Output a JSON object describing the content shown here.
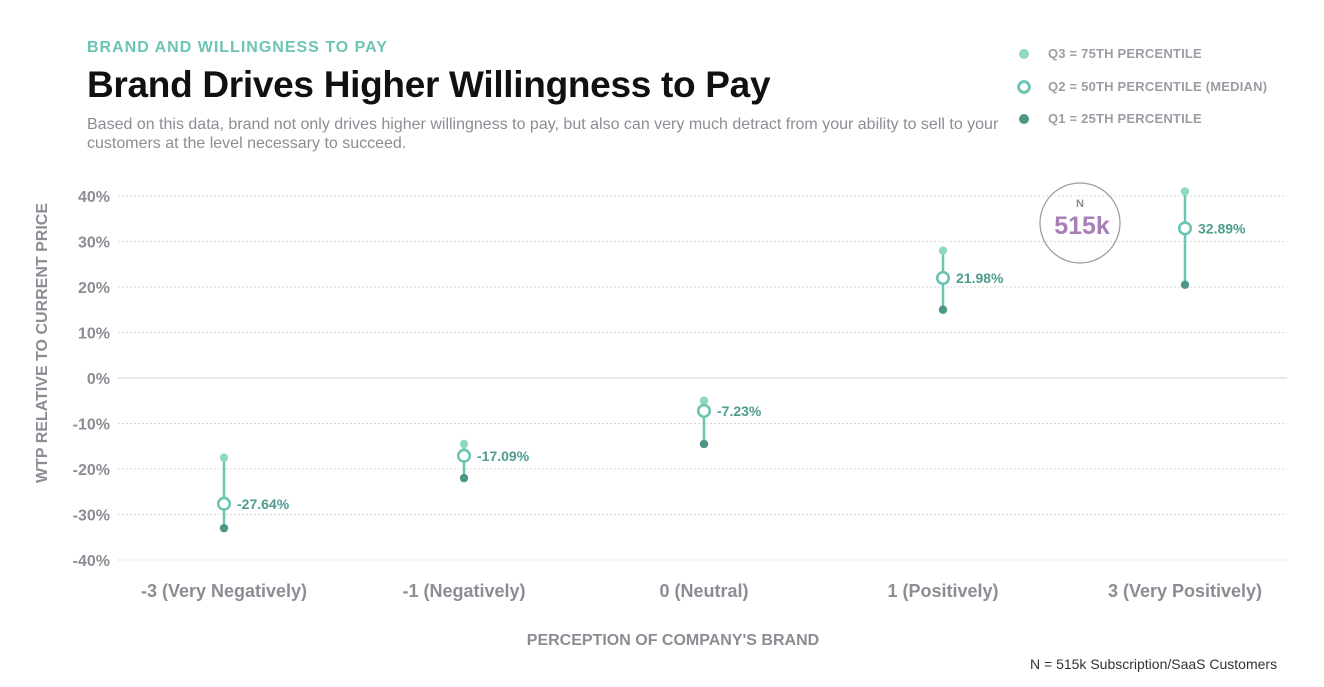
{
  "header": {
    "eyebrow": "BRAND AND WILLINGNESS TO PAY",
    "title": "Brand Drives Higher Willingness to Pay",
    "subtitle": "Based on this data, brand not only drives higher willingness to pay, but also can very much detract from your ability to sell to your customers at the level necessary to succeed."
  },
  "legend": {
    "items": [
      {
        "label": "Q3 = 75TH PERCENTILE",
        "marker": "filled-light"
      },
      {
        "label": "Q2 = 50TH PERCENTILE (MEDIAN)",
        "marker": "ring"
      },
      {
        "label": "Q1 = 25TH PERCENTILE",
        "marker": "filled-dark"
      }
    ]
  },
  "badge": {
    "label": "N",
    "value": "515k"
  },
  "footnote": "N = 515k Subscription/SaaS Customers",
  "colors": {
    "q3": "#8fd8c4",
    "q2": "#6cc4b2",
    "q1": "#4e9688",
    "stem": "#6cc4b2",
    "label": "#4e9c8e",
    "badge_value": "#a67fb7",
    "eyebrow": "#6cc4b2"
  },
  "chart_data": {
    "type": "scatter",
    "xlabel": "PERCEPTION OF COMPANY'S BRAND",
    "ylabel": "WTP RELATIVE TO CURRENT PRICE",
    "categories": [
      "-3 (Very Negatively)",
      "-1 (Negatively)",
      "0 (Neutral)",
      "1 (Positively)",
      "3 (Very Positively)"
    ],
    "ylim": [
      -40,
      40
    ],
    "yticks": [
      40,
      30,
      20,
      10,
      0,
      -10,
      -20,
      -30,
      -40
    ],
    "ytick_labels": [
      "40%",
      "30%",
      "20%",
      "10%",
      "0%",
      "-10%",
      "-20%",
      "-30%",
      "-40%"
    ],
    "grid": true,
    "legend_position": "top-right",
    "series": [
      {
        "name": "Q3 = 75TH PERCENTILE",
        "values": [
          -17.5,
          -14.5,
          -5.0,
          28.0,
          41.0
        ]
      },
      {
        "name": "Q2 = 50TH PERCENTILE (MEDIAN)",
        "values": [
          -27.64,
          -17.09,
          -7.23,
          21.98,
          32.89
        ]
      },
      {
        "name": "Q1 = 25TH PERCENTILE",
        "values": [
          -33.0,
          -22.0,
          -14.5,
          15.0,
          20.5
        ]
      }
    ],
    "data_labels": [
      "-27.64%",
      "-17.09%",
      "-7.23%",
      "21.98%",
      "32.89%"
    ]
  }
}
